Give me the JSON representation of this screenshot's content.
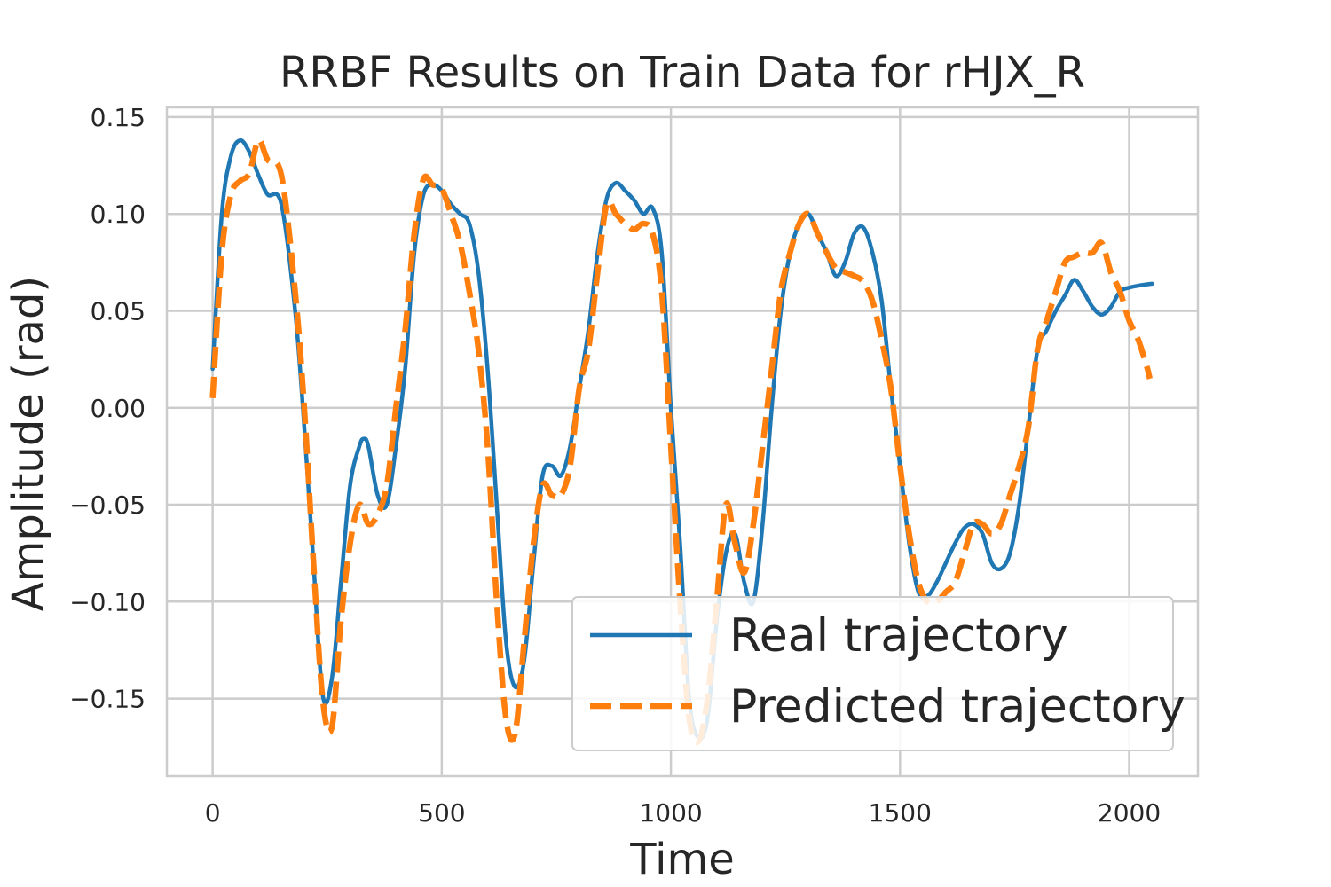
{
  "chart_data": {
    "type": "line",
    "title": "RRBF Results on Train Data for rHJX_R",
    "xlabel": "Time",
    "ylabel": "Amplitude (rad)",
    "xlim": [
      -100,
      2150
    ],
    "ylim": [
      -0.19,
      0.155
    ],
    "xticks": [
      0,
      500,
      1000,
      1500,
      2000
    ],
    "xtick_labels": [
      "0",
      "500",
      "1000",
      "1500",
      "2000"
    ],
    "yticks": [
      0.15,
      0.1,
      0.05,
      0.0,
      -0.05,
      -0.1,
      -0.15
    ],
    "ytick_labels": [
      "0.15",
      "0.10",
      "0.05",
      "0.00",
      "−0.05",
      "−0.10",
      "−0.15"
    ],
    "grid": true,
    "legend_position": "lower right",
    "series": [
      {
        "name": "Real trajectory",
        "color": "#1f77b4",
        "style": "solid",
        "x": [
          0,
          20,
          40,
          60,
          80,
          100,
          120,
          150,
          180,
          200,
          220,
          240,
          260,
          280,
          300,
          320,
          330,
          340,
          360,
          380,
          400,
          420,
          440,
          460,
          480,
          500,
          520,
          540,
          560,
          580,
          600,
          620,
          640,
          660,
          680,
          700,
          720,
          740,
          760,
          780,
          800,
          820,
          840,
          860,
          880,
          900,
          920,
          940,
          960,
          980,
          1000,
          1020,
          1040,
          1060,
          1080,
          1100,
          1120,
          1140,
          1160,
          1180,
          1200,
          1220,
          1240,
          1260,
          1280,
          1300,
          1320,
          1340,
          1360,
          1380,
          1400,
          1420,
          1440,
          1460,
          1480,
          1500,
          1520,
          1540,
          1560,
          1580,
          1600,
          1620,
          1640,
          1660,
          1680,
          1700,
          1720,
          1740,
          1760,
          1780,
          1800,
          1820,
          1840,
          1860,
          1880,
          1900,
          1920,
          1940,
          1960,
          1980,
          2000,
          2020,
          2050
        ],
        "y": [
          0.02,
          0.1,
          0.13,
          0.138,
          0.132,
          0.12,
          0.11,
          0.105,
          0.05,
          -0.01,
          -0.08,
          -0.148,
          -0.14,
          -0.09,
          -0.04,
          -0.02,
          -0.016,
          -0.02,
          -0.045,
          -0.05,
          -0.02,
          0.02,
          0.08,
          0.11,
          0.115,
          0.112,
          0.105,
          0.1,
          0.095,
          0.07,
          0.02,
          -0.05,
          -0.12,
          -0.144,
          -0.13,
          -0.08,
          -0.035,
          -0.03,
          -0.035,
          -0.02,
          0.01,
          0.04,
          0.08,
          0.108,
          0.116,
          0.112,
          0.107,
          0.1,
          0.103,
          0.08,
          0.0,
          -0.07,
          -0.15,
          -0.17,
          -0.16,
          -0.11,
          -0.075,
          -0.065,
          -0.09,
          -0.1,
          -0.06,
          0.0,
          0.05,
          0.08,
          0.095,
          0.1,
          0.09,
          0.08,
          0.068,
          0.075,
          0.09,
          0.093,
          0.08,
          0.055,
          0.01,
          -0.03,
          -0.07,
          -0.095,
          -0.097,
          -0.09,
          -0.08,
          -0.07,
          -0.062,
          -0.06,
          -0.065,
          -0.08,
          -0.083,
          -0.075,
          -0.05,
          -0.01,
          0.03,
          0.04,
          0.05,
          0.058,
          0.066,
          0.06,
          0.052,
          0.048,
          0.052,
          0.06,
          0.062,
          0.063,
          0.064
        ]
      },
      {
        "name": "Predicted trajectory",
        "color": "#ff7f0e",
        "style": "dashed",
        "x": [
          0,
          20,
          40,
          60,
          80,
          100,
          120,
          150,
          180,
          200,
          220,
          240,
          260,
          280,
          300,
          320,
          340,
          360,
          380,
          400,
          420,
          440,
          460,
          480,
          500,
          520,
          540,
          560,
          580,
          600,
          620,
          640,
          660,
          680,
          700,
          720,
          740,
          760,
          780,
          800,
          820,
          840,
          860,
          880,
          900,
          920,
          940,
          960,
          980,
          1000,
          1020,
          1040,
          1060,
          1080,
          1100,
          1120,
          1140,
          1160,
          1180,
          1200,
          1220,
          1240,
          1260,
          1280,
          1300,
          1320,
          1340,
          1360,
          1380,
          1400,
          1420,
          1440,
          1460,
          1480,
          1500,
          1520,
          1540,
          1560,
          1580,
          1600,
          1620,
          1640,
          1660,
          1680,
          1700,
          1720,
          1740,
          1760,
          1780,
          1800,
          1820,
          1840,
          1860,
          1880,
          1900,
          1920,
          1940,
          1960,
          1980,
          2000,
          2020,
          2040,
          2045
        ],
        "y": [
          0.005,
          0.08,
          0.11,
          0.117,
          0.121,
          0.138,
          0.128,
          0.12,
          0.06,
          0.0,
          -0.08,
          -0.15,
          -0.165,
          -0.11,
          -0.07,
          -0.05,
          -0.06,
          -0.055,
          -0.04,
          0.0,
          0.04,
          0.09,
          0.118,
          0.115,
          0.113,
          0.1,
          0.085,
          0.06,
          0.03,
          -0.02,
          -0.1,
          -0.16,
          -0.168,
          -0.12,
          -0.07,
          -0.04,
          -0.045,
          -0.045,
          -0.03,
          0.01,
          0.03,
          0.07,
          0.105,
          0.1,
          0.095,
          0.092,
          0.095,
          0.09,
          0.06,
          -0.02,
          -0.1,
          -0.16,
          -0.172,
          -0.15,
          -0.1,
          -0.05,
          -0.07,
          -0.085,
          -0.06,
          -0.02,
          0.02,
          0.06,
          0.08,
          0.095,
          0.1,
          0.09,
          0.08,
          0.072,
          0.07,
          0.068,
          0.065,
          0.055,
          0.035,
          0.01,
          -0.03,
          -0.065,
          -0.09,
          -0.1,
          -0.1,
          -0.095,
          -0.09,
          -0.075,
          -0.06,
          -0.06,
          -0.065,
          -0.06,
          -0.045,
          -0.03,
          -0.01,
          0.03,
          0.045,
          0.06,
          0.075,
          0.078,
          0.08,
          0.08,
          0.085,
          0.07,
          0.06,
          0.045,
          0.035,
          0.02,
          0.015
        ]
      }
    ]
  }
}
